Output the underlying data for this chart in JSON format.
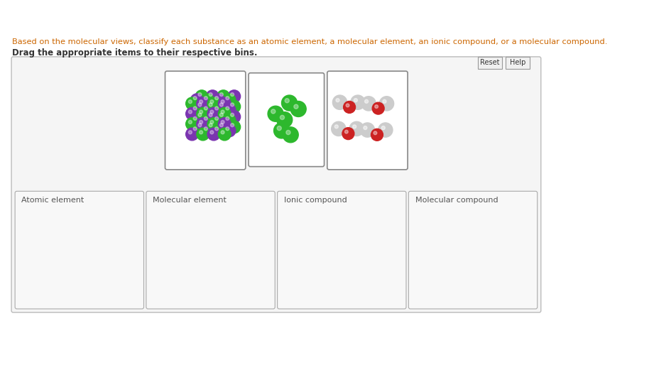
{
  "bg_color": "#ffffff",
  "outer_box_facecolor": "#f5f5f5",
  "outer_box_edgecolor": "#bbbbbb",
  "mol_box_edgecolor": "#888888",
  "mol_box_facecolor": "#ffffff",
  "bin_box_edgecolor": "#aaaaaa",
  "bin_box_facecolor": "#f8f8f8",
  "title1_color": "#cc6600",
  "title2_color": "#333333",
  "title1": "Based on the molecular views, classify each substance as an atomic element, a molecular element, an ionic compound, or a molecular compound.",
  "title2": "Drag the appropriate items to their respective bins.",
  "bin_labels": [
    "Atomic element",
    "Molecular element",
    "Ionic compound",
    "Molecular compound"
  ],
  "btn_labels": [
    "Reset",
    "Help"
  ],
  "green_color": "#2db82d",
  "purple_color": "#7b35b0",
  "red_color": "#cc2222",
  "white_sphere_color": "#cccccc",
  "fig_width": 9.21,
  "fig_height": 5.31,
  "dpi": 100
}
